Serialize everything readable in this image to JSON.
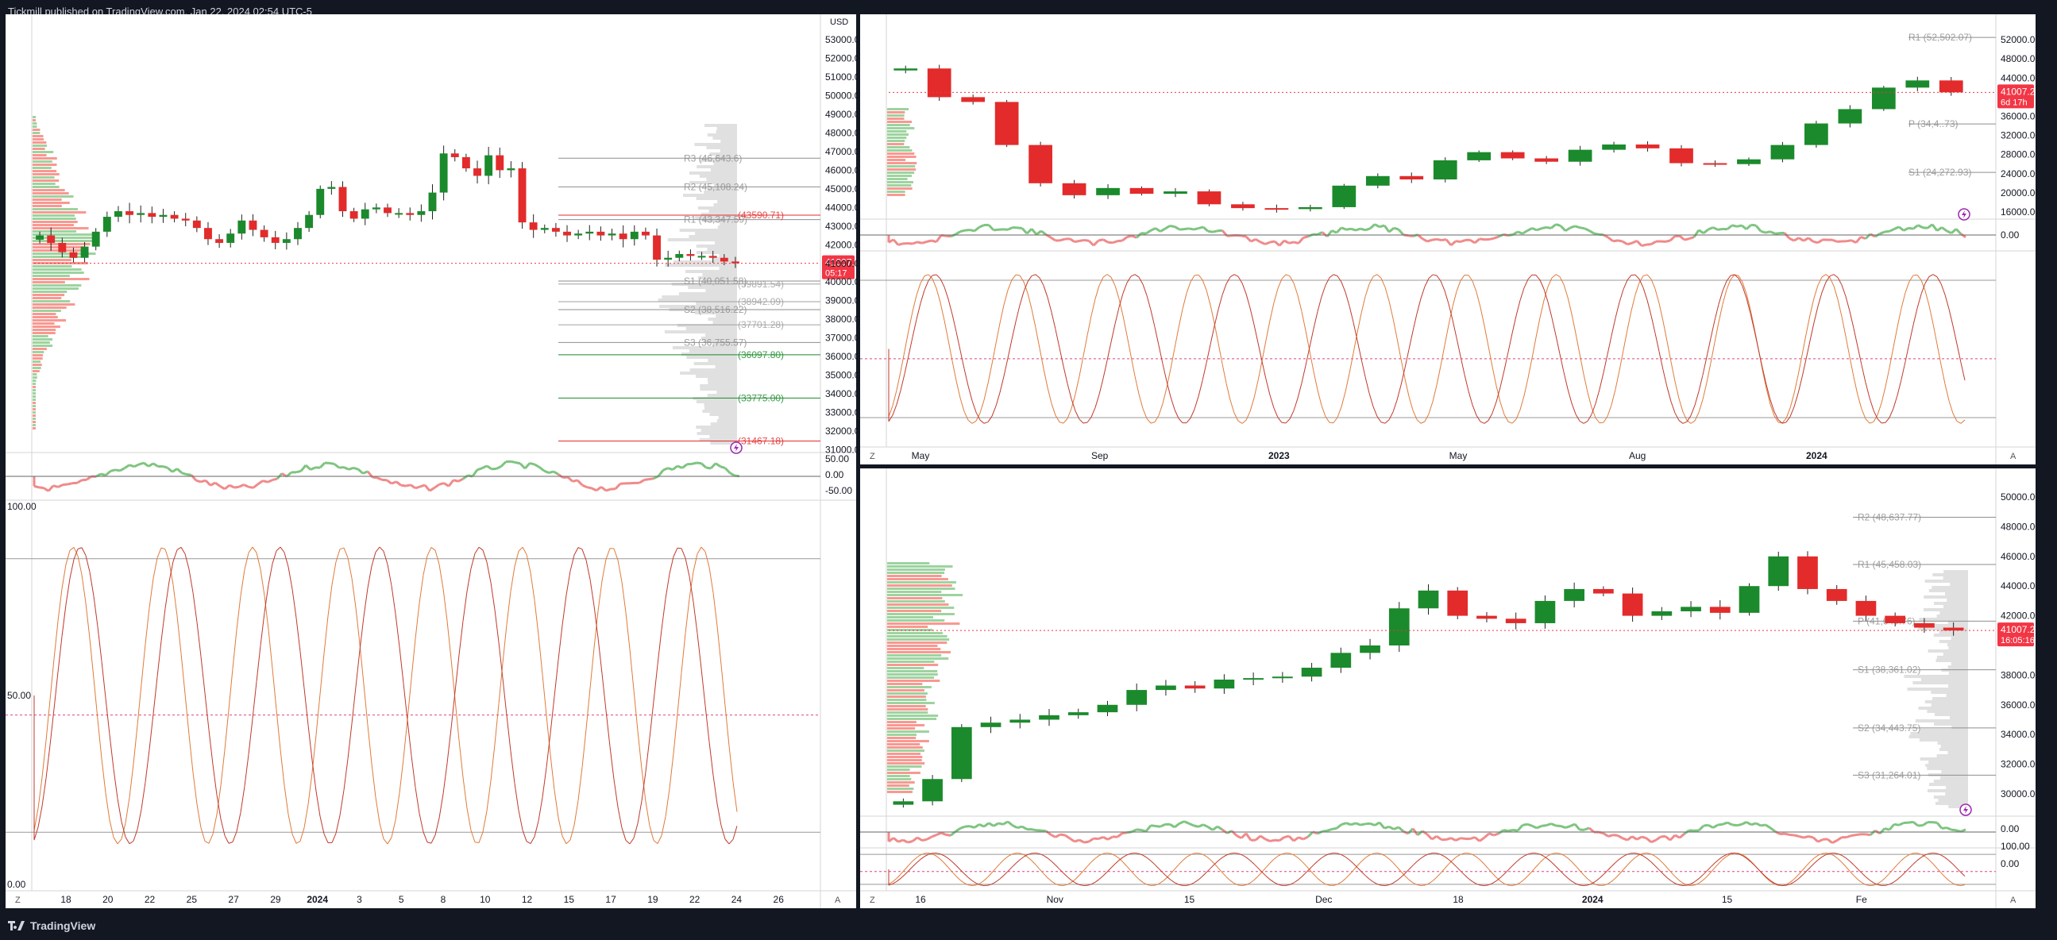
{
  "header": {
    "publish_line": "Tickmill published on TradingView.com, Jan 22, 2024 02:54 UTC-5"
  },
  "footer": {
    "brand": "TradingView"
  },
  "colors": {
    "up": "#1b8a2c",
    "down": "#e32b2b",
    "price_tag": "#f23645",
    "volume_up": "#4caf50",
    "volume_down": "#f44336",
    "profile": "#d8d8d8"
  },
  "icons": [
    "tradingview-logo-icon",
    "flash-icon",
    "auto-scale-icon",
    "zoom-icon"
  ],
  "chart_data": [
    {
      "id": "main",
      "type": "line",
      "currency": "USD",
      "price_ticks": [
        "53000.00",
        "52000.00",
        "51000.00",
        "50000.00",
        "49000.00",
        "48000.00",
        "47000.00",
        "46000.00",
        "45000.00",
        "44000.00",
        "43000.00",
        "42000.00",
        "41000.00",
        "40000.00",
        "39000.00",
        "38000.00",
        "37000.00",
        "36000.00",
        "35000.00",
        "34000.00",
        "33000.00",
        "32000.00",
        "31000.00"
      ],
      "ylim": [
        30850,
        53600
      ],
      "x_ticks": [
        "18",
        "20",
        "22",
        "25",
        "27",
        "29",
        "2024",
        "3",
        "5",
        "8",
        "10",
        "12",
        "15",
        "17",
        "19",
        "22",
        "24",
        "26"
      ],
      "last_price": "41007.43",
      "countdown": "05:17",
      "levels": [
        {
          "label": "R3 (46,643.6)",
          "value": 46643.6
        },
        {
          "label": "R2 (45,108.24)",
          "value": 45108.24
        },
        {
          "label": "R1 (43,347.59)",
          "value": 43347.59
        },
        {
          "label": "(43590.71)",
          "value": 43590.71
        },
        {
          "label": "S1 (40,051.58)",
          "value": 40051.58
        },
        {
          "label": "(39891.54)",
          "value": 39891.54
        },
        {
          "label": "(38942.09)",
          "value": 38942.09
        },
        {
          "label": "S2 (38,516.22)",
          "value": 38516.22
        },
        {
          "label": "(37701.28)",
          "value": 37701.28
        },
        {
          "label": "S3 (36,755.57)",
          "value": 36755.57
        },
        {
          "label": "(36097.80)",
          "value": 36097.8
        },
        {
          "label": "(33775.00)",
          "value": 33775.0
        },
        {
          "label": "(31467.18)",
          "value": 31467.18
        }
      ],
      "close_series": [
        42500,
        42100,
        41600,
        41300,
        41900,
        42700,
        43500,
        43800,
        43600,
        43700,
        43500,
        43600,
        43400,
        43300,
        42900,
        42300,
        42100,
        42600,
        43300,
        42800,
        42400,
        42100,
        42300,
        42900,
        43600,
        45000,
        45100,
        43800,
        43400,
        43900,
        44000,
        43700,
        43700,
        43600,
        43800,
        44800,
        46900,
        46700,
        46100,
        45700,
        46800,
        46000,
        46100,
        43200,
        42800,
        42900,
        42700,
        42500,
        42600,
        42700,
        42500,
        42600,
        42300,
        42700,
        42500,
        41200,
        41300,
        41500,
        41400,
        41400,
        41300,
        41100,
        41007
      ],
      "osc1_ticks": [
        "50.00",
        "0.00",
        "-50.00"
      ],
      "osc2_ticks": [
        "100.00",
        "50.00",
        "0.00"
      ]
    },
    {
      "id": "top-right",
      "type": "line",
      "price_ticks": [
        "52000.00",
        "48000.00",
        "44000.00",
        "36000.00",
        "32000.00",
        "28000.00",
        "24000.00",
        "20000.00",
        "16000.00"
      ],
      "ylim": [
        14500,
        56000
      ],
      "x_ticks": [
        "May",
        "Sep",
        "2023",
        "May",
        "Aug",
        "2024"
      ],
      "last_price": "41007.29",
      "countdown": "6d 17h",
      "levels": [
        {
          "label": "R1 (52,502.07)",
          "value": 52502.07
        },
        {
          "label": "P (34,4..73)",
          "value": 34400
        },
        {
          "label": "S1 (24,272.93)",
          "value": 24272.93
        }
      ],
      "close_series": [
        46000,
        40000,
        39000,
        30000,
        22000,
        19500,
        21000,
        19800,
        20300,
        17600,
        16800,
        16600,
        17000,
        21500,
        23500,
        22800,
        26800,
        28500,
        27200,
        26500,
        29000,
        30100,
        29300,
        26200,
        26000,
        27000,
        30000,
        34500,
        37500,
        42000,
        43500,
        41007
      ],
      "osc_tick": "0.00"
    },
    {
      "id": "bottom-right",
      "type": "line",
      "price_ticks": [
        "50000.00",
        "48000.00",
        "46000.00",
        "44000.00",
        "42000.00",
        "38000.00",
        "36000.00",
        "34000.00",
        "32000.00",
        "30000.00"
      ],
      "ylim": [
        28500,
        51500
      ],
      "x_ticks": [
        "16",
        "Nov",
        "15",
        "Dec",
        "18",
        "2024",
        "15",
        "Fe"
      ],
      "last_price": "41007.29",
      "countdown": "16:05:16",
      "levels": [
        {
          "label": "R2 (48,637.77)",
          "value": 48637.77
        },
        {
          "label": "R1 (45,458.03)",
          "value": 45458.03
        },
        {
          "label": "P (41,640.76)",
          "value": 41640.76
        },
        {
          "label": "S1 (38,361.02)",
          "value": 38361.02
        },
        {
          "label": "S2 (34,443.75)",
          "value": 34443.75
        },
        {
          "label": "S3 (31,264.01)",
          "value": 31264.01
        }
      ],
      "close_series": [
        29500,
        31000,
        34500,
        34800,
        35000,
        35300,
        35500,
        36000,
        37000,
        37300,
        37100,
        37700,
        37800,
        37900,
        38500,
        39500,
        40000,
        42500,
        43700,
        42000,
        41800,
        41500,
        43000,
        43800,
        43500,
        42000,
        42300,
        42600,
        42200,
        44000,
        46000,
        43800,
        43000,
        42000,
        41500,
        41200,
        41007
      ],
      "osc_ticks": [
        "0.00",
        "100.00",
        "0.00"
      ]
    }
  ]
}
